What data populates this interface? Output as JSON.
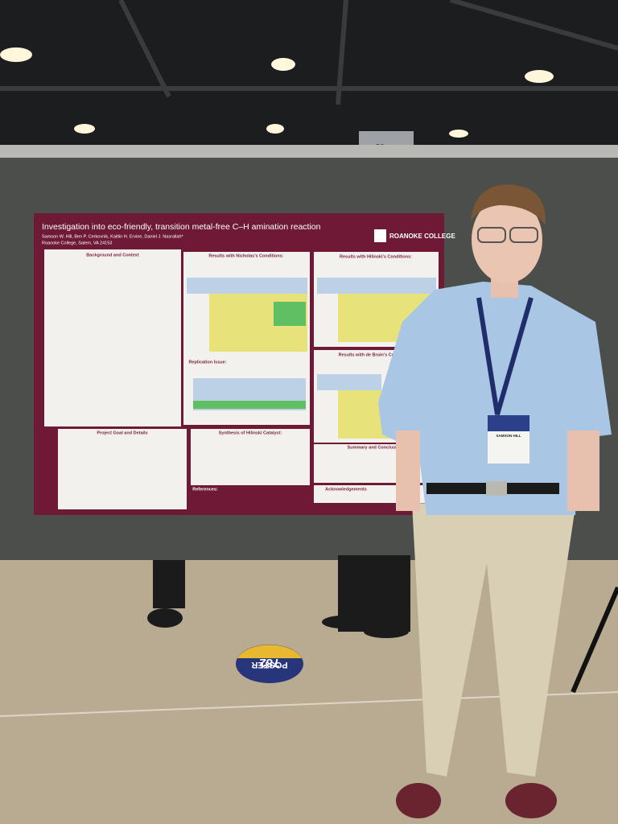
{
  "poster": {
    "title": "Investigation into eco-friendly, transition metal-free C–H amination reaction",
    "authors": "Samson W. Hill, Ben P. Cerkovnik, Kaitlin H. Ervine, Daniel J. Nasrallah*",
    "affiliation": "Roanoke College, Salem, VA 24153",
    "logo": "ROANOKE COLLEGE",
    "sections": [
      {
        "heading": "Background and Context"
      },
      {
        "heading": "Results with Nicholas's Conditions:"
      },
      {
        "heading": "Results with Hilinski's Conditions:"
      },
      {
        "heading": "Results with de Bruin's Conditions:"
      },
      {
        "heading": "Replication Issue:"
      },
      {
        "heading": "Project Goal and Details"
      },
      {
        "heading": "Synthesis of Hilinski Catalyst:"
      },
      {
        "heading": "Summary and Conclusions"
      },
      {
        "heading": "Acknowledgements"
      },
      {
        "heading": "References:"
      }
    ]
  },
  "pillar_label": "C9",
  "badge_name": "SAMSON HILL",
  "floor_sign": {
    "label": "POSTER",
    "number": "782"
  }
}
